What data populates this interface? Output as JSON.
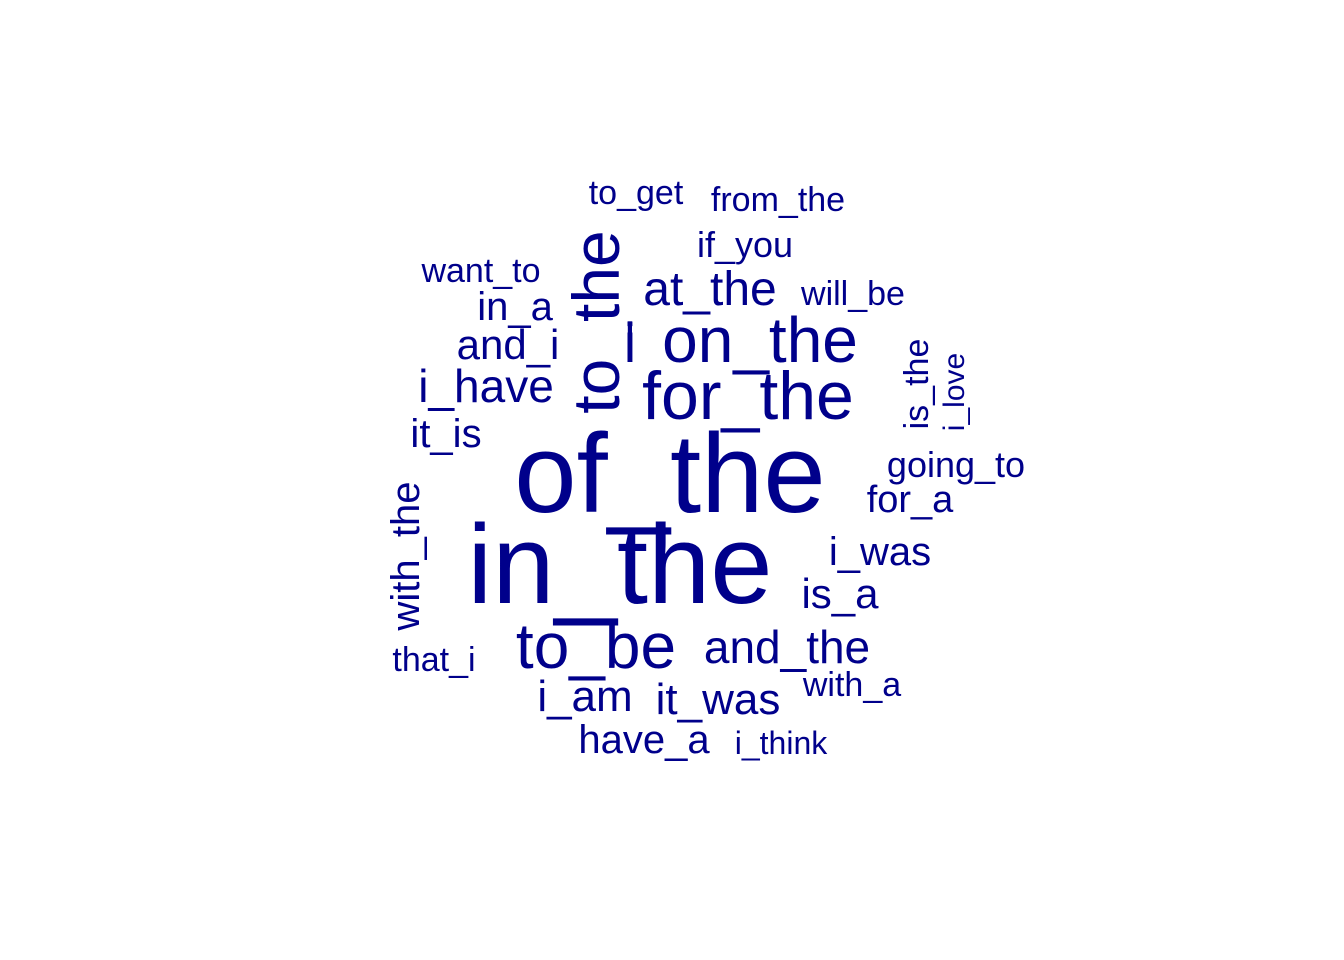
{
  "colors": {
    "word": "#00008B",
    "background": "#FFFFFF"
  },
  "words": [
    {
      "text": "of_the",
      "rotated": false
    },
    {
      "text": "in_the",
      "rotated": false
    },
    {
      "text": "to_the",
      "rotated": true
    },
    {
      "text": "for_the",
      "rotated": false
    },
    {
      "text": "on_the",
      "rotated": false
    },
    {
      "text": "to_be",
      "rotated": false
    },
    {
      "text": "i",
      "rotated": false
    },
    {
      "text": "at_the",
      "rotated": false
    },
    {
      "text": "i_have",
      "rotated": false
    },
    {
      "text": "and_the",
      "rotated": false
    },
    {
      "text": "it_was",
      "rotated": false
    },
    {
      "text": "i_am",
      "rotated": false
    },
    {
      "text": "and_i",
      "rotated": false
    },
    {
      "text": "is_a",
      "rotated": false
    },
    {
      "text": "have_a",
      "rotated": false
    },
    {
      "text": "i_was",
      "rotated": false
    },
    {
      "text": "with_the",
      "rotated": true
    },
    {
      "text": "it_is",
      "rotated": false
    },
    {
      "text": "in_a",
      "rotated": false
    },
    {
      "text": "for_a",
      "rotated": false
    },
    {
      "text": "if_you",
      "rotated": false
    },
    {
      "text": "going_to",
      "rotated": false
    },
    {
      "text": "is_the",
      "rotated": true
    },
    {
      "text": "that_i",
      "rotated": false
    },
    {
      "text": "will_be",
      "rotated": false
    },
    {
      "text": "with_a",
      "rotated": false
    },
    {
      "text": "to_get",
      "rotated": false
    },
    {
      "text": "want_to",
      "rotated": false
    },
    {
      "text": "from_the",
      "rotated": false
    },
    {
      "text": "i_think",
      "rotated": false
    },
    {
      "text": "i_love",
      "rotated": true
    }
  ]
}
